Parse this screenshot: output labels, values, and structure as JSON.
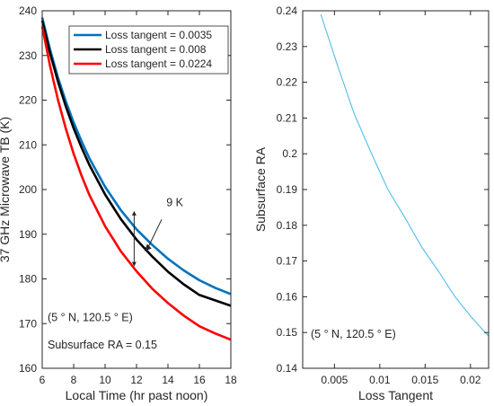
{
  "chart_data": [
    {
      "type": "line",
      "xlabel": "Local Time (hr past noon)",
      "ylabel": "37 GHz Microwave TB (K)",
      "xlim": [
        6,
        18
      ],
      "ylim": [
        160,
        240
      ],
      "xticks": [
        6,
        8,
        10,
        12,
        14,
        16,
        18
      ],
      "yticks": [
        160,
        170,
        180,
        190,
        200,
        210,
        220,
        230,
        240
      ],
      "grid": false,
      "legend_position": "top-right",
      "series": [
        {
          "name": "Loss tangent = 0.0035",
          "color": "#0072BD",
          "x": [
            6,
            6.5,
            7,
            7.5,
            8,
            8.5,
            9,
            10,
            11,
            12,
            13,
            14,
            15,
            16,
            17,
            18
          ],
          "y": [
            238.5,
            231.3,
            225.1,
            219.7,
            215.0,
            210.8,
            207.0,
            200.6,
            195.4,
            191.1,
            187.6,
            184.5,
            181.9,
            179.7,
            178.0,
            176.6
          ]
        },
        {
          "name": "Loss tangent = 0.008",
          "color": "#000000",
          "x": [
            6,
            6.5,
            7,
            7.5,
            8,
            8.5,
            9,
            10,
            11,
            12,
            13,
            14,
            15,
            16,
            17,
            18
          ],
          "y": [
            237.8,
            230.5,
            224.2,
            218.6,
            213.7,
            209.4,
            205.5,
            198.9,
            193.4,
            188.8,
            185.0,
            181.6,
            178.8,
            176.4,
            175.2,
            174.0
          ]
        },
        {
          "name": "Loss tangent = 0.0224",
          "color": "#FF0000",
          "x": [
            6,
            6.5,
            7,
            7.5,
            8,
            8.5,
            9,
            10,
            11,
            12,
            13,
            14,
            15,
            16,
            17,
            18
          ],
          "y": [
            236.5,
            227.6,
            220.1,
            213.6,
            208.0,
            203.1,
            198.8,
            191.8,
            186.2,
            181.7,
            177.8,
            174.6,
            171.8,
            169.4,
            167.8,
            166.4
          ]
        }
      ],
      "annotations": {
        "delta_label": "9 K",
        "location_label": "(5 ° N, 120.5 ° E)",
        "ra_label": "Subsurface RA = 0.15"
      }
    },
    {
      "type": "line",
      "xlabel": "Loss Tangent",
      "ylabel": "Subsurface RA",
      "xlim": [
        0.0015,
        0.022
      ],
      "ylim": [
        0.14,
        0.24
      ],
      "xticks": [
        0.005,
        0.01,
        0.015,
        0.02
      ],
      "xtick_labels": [
        "0.005",
        "0.01",
        "0.015",
        "0.02"
      ],
      "yticks": [
        0.14,
        0.15,
        0.16,
        0.17,
        0.18,
        0.19,
        0.2,
        0.21,
        0.22,
        0.23,
        0.24
      ],
      "ytick_labels": [
        "0.14",
        "0.15",
        "0.16",
        "0.17",
        "0.18",
        "0.19",
        "0.2",
        "0.21",
        "0.22",
        "0.23",
        "0.24"
      ],
      "grid": false,
      "series": [
        {
          "color": "#4DBEEE",
          "x": [
            0.0035,
            0.0053,
            0.0072,
            0.0091,
            0.0109,
            0.0128,
            0.0146,
            0.0165,
            0.0183,
            0.0202,
            0.022
          ],
          "y": [
            0.239,
            0.225,
            0.211,
            0.2,
            0.19,
            0.182,
            0.174,
            0.167,
            0.16,
            0.154,
            0.149
          ]
        }
      ],
      "annotations": {
        "location_label": "(5 ° N, 120.5 ° E)"
      }
    }
  ]
}
